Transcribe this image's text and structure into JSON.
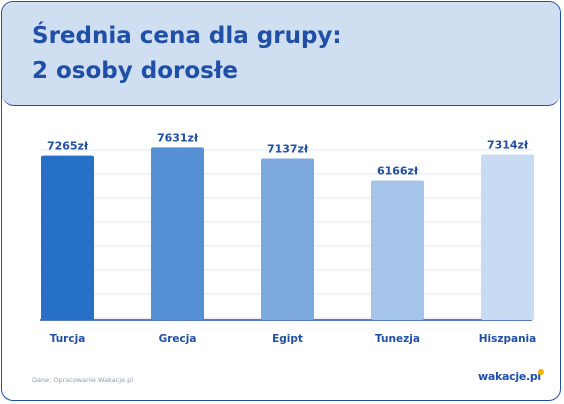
{
  "header": {
    "title_line1": "Średnia cena dla grupy:",
    "title_line2": "2 osoby dorosłe"
  },
  "chart_data": {
    "type": "bar",
    "title": "Średnia cena dla grupy: 2 osoby dorosłe",
    "categories": [
      "Turcja",
      "Grecja",
      "Egipt",
      "Tunezja",
      "Hiszpania"
    ],
    "values": [
      7265,
      7631,
      7137,
      6166,
      7314
    ],
    "value_labels": [
      "7265zł",
      "7631zł",
      "7137zł",
      "6166zł",
      "7314zł"
    ],
    "unit": "zł",
    "grid": true,
    "colors": [
      "#2670c8",
      "#5590d4",
      "#7ea9de",
      "#a5c4ea",
      "#c9dbf2"
    ]
  },
  "footer": {
    "source": "Dane: Opracowanie Wakacje.pl",
    "logo_text": "wakacje.pl"
  }
}
